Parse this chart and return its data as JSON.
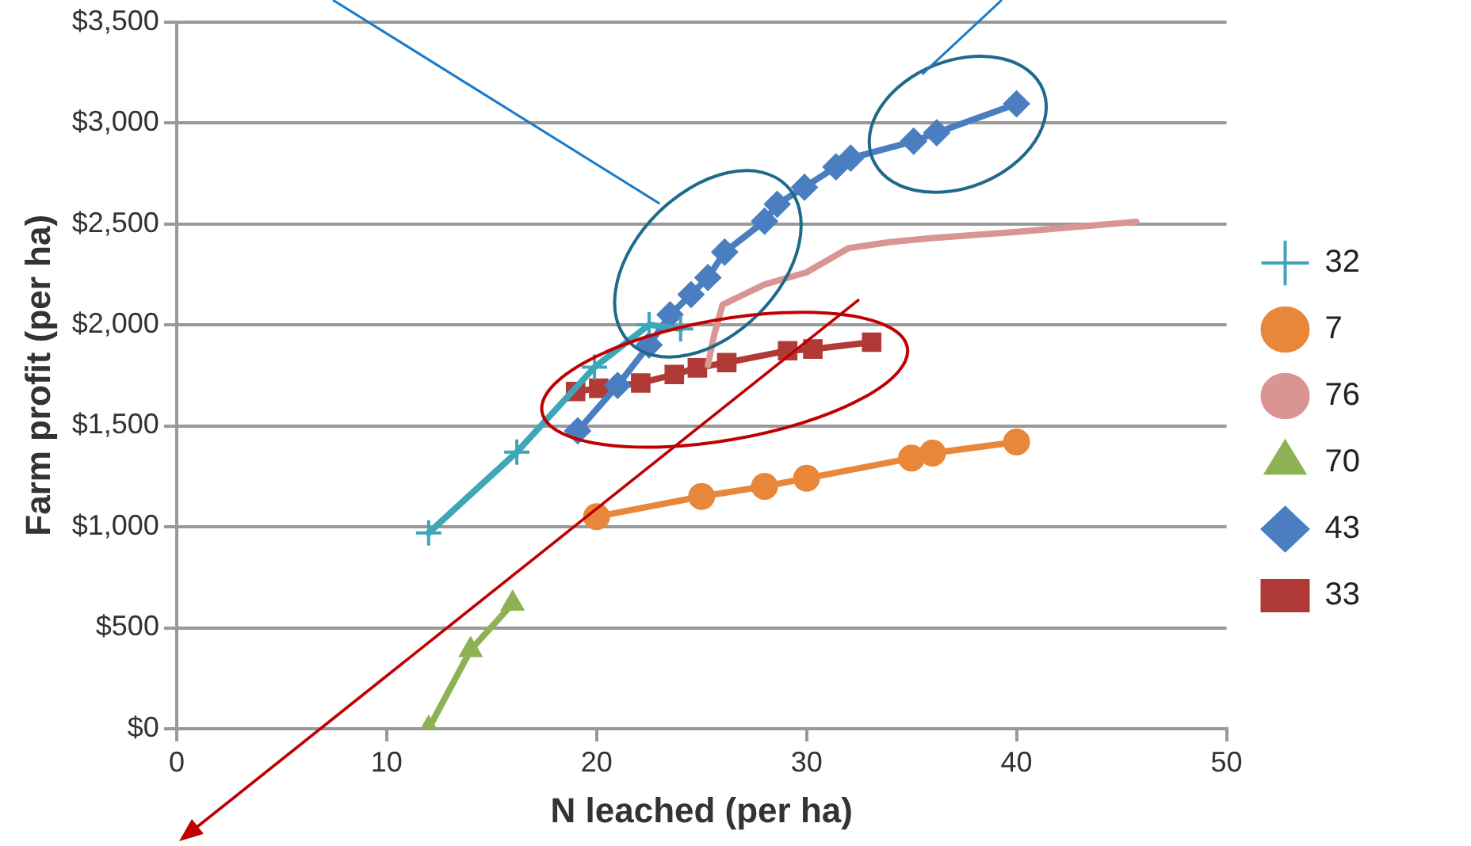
{
  "chart_data": {
    "type": "line",
    "xlabel": "N leached (per ha)",
    "ylabel": "Farm profit (per ha)",
    "xlim": [
      0,
      50
    ],
    "xticks": [
      0,
      10,
      20,
      30,
      40,
      50
    ],
    "ylim": [
      0,
      3500
    ],
    "yticks": [
      {
        "value": 0,
        "label": "$0"
      },
      {
        "value": 500,
        "label": "$500"
      },
      {
        "value": 1000,
        "label": "$1,000"
      },
      {
        "value": 1500,
        "label": "$1,500"
      },
      {
        "value": 2000,
        "label": "$2,000"
      },
      {
        "value": 2500,
        "label": "$2,500"
      },
      {
        "value": 3000,
        "label": "$3,000"
      },
      {
        "value": 3500,
        "label": "$3,500"
      }
    ],
    "grid": "y",
    "legend": "right",
    "series": [
      {
        "name": "32",
        "color": "#3fa6b8",
        "marker": "cross",
        "x": [
          12,
          16.2,
          19.9,
          22.5,
          24
        ],
        "values": [
          970,
          1370,
          1790,
          2000,
          1980
        ]
      },
      {
        "name": "7",
        "color": "#e8873a",
        "marker": "circle",
        "x": [
          20,
          25,
          28,
          30,
          35,
          36,
          40
        ],
        "values": [
          1050,
          1150,
          1200,
          1240,
          1340,
          1365,
          1420
        ]
      },
      {
        "name": "76",
        "color": "#d99594",
        "marker": "none",
        "x": [
          25.3,
          25.6,
          26,
          27,
          28,
          30,
          32,
          34,
          36,
          40,
          45.7
        ],
        "values": [
          1800,
          1950,
          2100,
          2150,
          2200,
          2260,
          2380,
          2410,
          2430,
          2460,
          2510
        ]
      },
      {
        "name": "70",
        "color": "#8db253",
        "marker": "triangle",
        "x": [
          12,
          14,
          16
        ],
        "values": [
          0,
          390,
          620
        ]
      },
      {
        "name": "43",
        "color": "#4a7ec1",
        "marker": "diamond",
        "x": [
          19.1,
          21,
          22.5,
          23.5,
          24.5,
          25.3,
          26.1,
          28,
          28.6,
          29.9,
          31.4,
          32.1,
          35.1,
          36.2,
          40
        ],
        "values": [
          1475,
          1700,
          1900,
          2050,
          2150,
          2234,
          2360,
          2513,
          2597,
          2681,
          2782,
          2825,
          2909,
          2951,
          3094
        ]
      },
      {
        "name": "33",
        "color": "#b03a36",
        "marker": "square",
        "x": [
          19,
          20.1,
          22.1,
          23.7,
          24.8,
          26.2,
          29.1,
          30.3,
          33.1
        ],
        "values": [
          1670,
          1686,
          1712,
          1754,
          1787,
          1813,
          1872,
          1880,
          1914
        ]
      }
    ]
  }
}
